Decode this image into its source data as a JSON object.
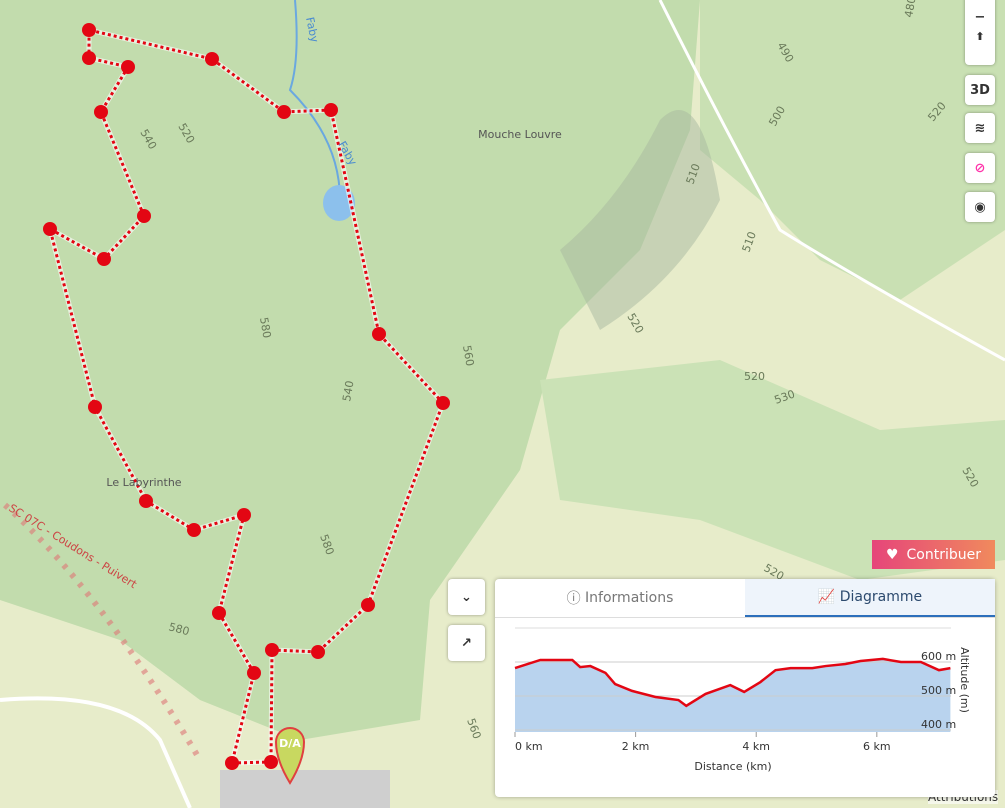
{
  "map": {
    "labels": [
      "Mouche Louvre",
      "Le Labyrinthe",
      "Faby",
      "Faby",
      "SC 07C - Coudons - Puivert",
      "520",
      "540",
      "580",
      "560",
      "540",
      "580",
      "510",
      "500",
      "490",
      "480",
      "520",
      "510",
      "520",
      "530",
      "520",
      "520",
      "580",
      "560",
      "520"
    ],
    "marker": "D/A",
    "controls": {
      "three_d": "3D"
    }
  },
  "contribute": "Contribuer",
  "attributions": "Attributions",
  "panel": {
    "tabs": [
      "Informations",
      "Diagramme"
    ],
    "elevation_chart": {
      "type": "line",
      "xlabel": "Distance (km)",
      "ylabel": "Altitude (m)",
      "color": "#e30613",
      "fill": "#b9d3ee",
      "x": [
        0,
        0.42,
        0.95,
        1.08,
        1.25,
        1.5,
        1.66,
        1.94,
        2.33,
        2.71,
        2.84,
        3.16,
        3.57,
        3.8,
        4.07,
        4.32,
        4.57,
        4.93,
        5.15,
        5.48,
        5.73,
        6.1,
        6.4,
        6.73,
        7.03,
        7.22
      ],
      "values": [
        582,
        606,
        606,
        585,
        588,
        568,
        535,
        515,
        497,
        488,
        471,
        506,
        532,
        512,
        541,
        576,
        582,
        582,
        588,
        594,
        603,
        609,
        600,
        600,
        576,
        582
      ],
      "xlim": [
        0,
        7.23
      ],
      "ylim": [
        394,
        700
      ],
      "xticks": [
        {
          "value": 0,
          "label": "0 km"
        },
        {
          "value": 2,
          "label": "2 km"
        },
        {
          "value": 4,
          "label": "4 km"
        },
        {
          "value": 6,
          "label": "6 km"
        }
      ],
      "yticks": [
        {
          "value": 400,
          "label": "400 m"
        },
        {
          "value": 500,
          "label": "500 m"
        },
        {
          "value": 600,
          "label": "600 m"
        }
      ],
      "grid": true
    }
  }
}
